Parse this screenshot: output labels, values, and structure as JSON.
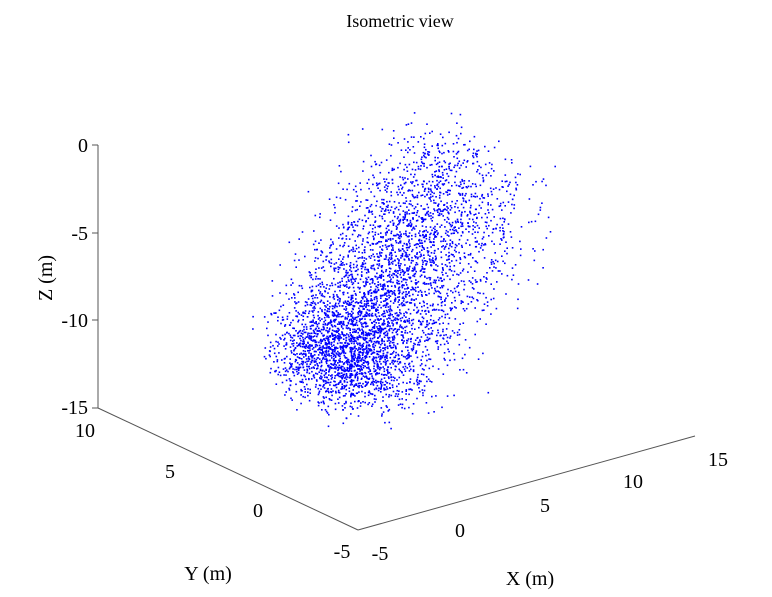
{
  "chart_data": {
    "type": "scatter",
    "title": "Isometric view",
    "xlabel": "X (m)",
    "ylabel": "Y (m)",
    "zlabel": "Z (m)",
    "xlim": [
      -5,
      15
    ],
    "ylim": [
      -5,
      10
    ],
    "zlim": [
      -15,
      0
    ],
    "xticks": [
      "-5",
      "0",
      "5",
      "10",
      "15"
    ],
    "yticks": [
      "-5",
      "0",
      "5",
      "10"
    ],
    "zticks": [
      "-15",
      "-10",
      "-5",
      "0"
    ],
    "grid": false,
    "marker_color": "#0000ff",
    "series": [
      {
        "cluster": {
          "point_count": 4500,
          "x_range": [
            -1,
            11
          ],
          "y_range": [
            -2,
            6
          ],
          "z_range": [
            -13,
            0
          ],
          "dense_core": {
            "x": 1.5,
            "y": 2.5,
            "z": -11
          }
        }
      }
    ]
  }
}
